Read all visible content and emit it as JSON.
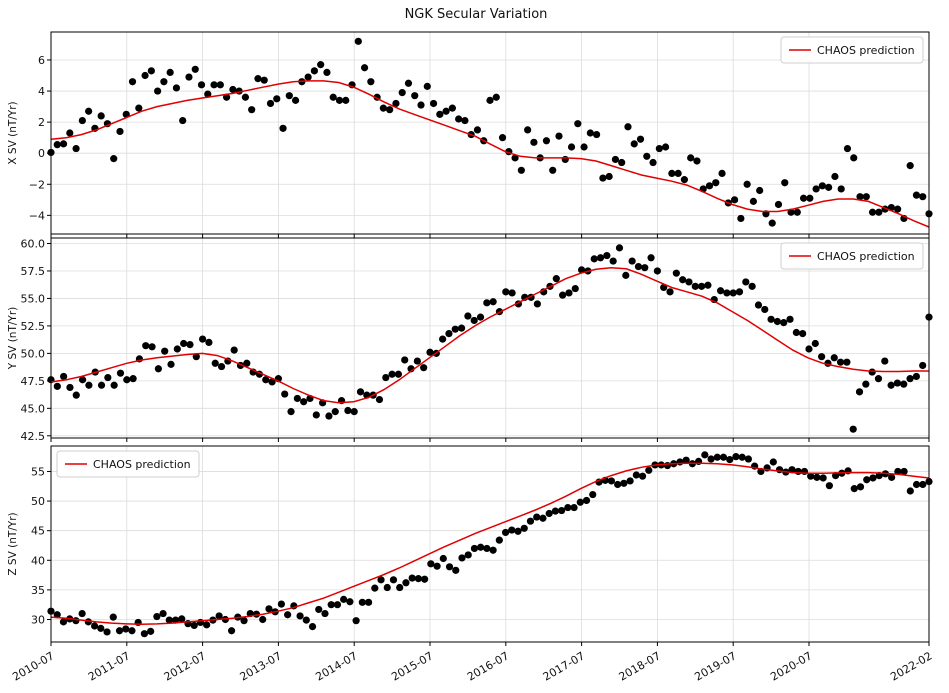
{
  "chart_data": {
    "title": "NGK Secular Variation",
    "type": "scatter",
    "x_tick_labels": [
      "2010-07",
      "2011-07",
      "2012-07",
      "2013-07",
      "2014-07",
      "2015-07",
      "2016-07",
      "2017-07",
      "2018-07",
      "2019-07",
      "2020-07",
      "2022-02"
    ],
    "x_tick_positions": [
      2010.5,
      2011.5,
      2012.5,
      2013.5,
      2014.5,
      2015.5,
      2016.5,
      2017.5,
      2018.5,
      2019.5,
      2020.5,
      2022.083
    ],
    "xlim": [
      2010.5,
      2022.083
    ],
    "colors": {
      "observed": "#000000",
      "model": "#e00000"
    },
    "panels": [
      {
        "ylabel": "X SV (nT/Yr)",
        "ylim": [
          -5.2,
          7.8
        ],
        "yticks": [
          -4,
          -2,
          0,
          2,
          4,
          6
        ],
        "ytick_labels": [
          "−4",
          "−2",
          "0",
          "2",
          "4",
          "6"
        ],
        "legend_position": "top-right",
        "model_label": "CHAOS prediction",
        "observed": [
          0.05,
          0.55,
          0.6,
          1.3,
          0.3,
          2.1,
          2.7,
          1.6,
          2.4,
          1.9,
          -0.35,
          1.4,
          2.5,
          4.6,
          2.9,
          5.0,
          5.3,
          4.0,
          4.6,
          5.2,
          4.2,
          2.1,
          4.9,
          5.4,
          4.4,
          3.8,
          4.4,
          4.4,
          3.6,
          4.1,
          4.0,
          3.6,
          2.8,
          4.8,
          4.7,
          3.2,
          3.5,
          1.6,
          3.7,
          3.4,
          4.6,
          4.9,
          5.3,
          5.7,
          5.2,
          3.6,
          3.4,
          3.4,
          4.4,
          7.2,
          5.5,
          4.6,
          3.6,
          2.9,
          2.8,
          3.2,
          3.9,
          4.5,
          3.7,
          3.1,
          4.3,
          3.2,
          2.5,
          2.7,
          2.9,
          2.2,
          2.1,
          1.2,
          1.5,
          0.8,
          3.4,
          3.6,
          1.0,
          0.1,
          -0.3,
          -1.1,
          1.5,
          0.7,
          -0.3,
          0.8,
          -1.1,
          1.1,
          -0.4,
          0.4,
          1.9,
          0.4,
          1.3,
          1.2,
          -1.6,
          -1.5,
          -0.4,
          -0.6,
          1.7,
          0.6,
          0.9,
          -0.2,
          -0.6,
          0.3,
          0.4,
          -1.3,
          -1.3,
          -1.7,
          -0.3,
          -0.5,
          -2.3,
          -2.1,
          -1.9,
          -1.3,
          -3.2,
          -3.0,
          -4.2,
          -2.0,
          -3.1,
          -2.4,
          -3.9,
          -4.5,
          -3.3,
          -1.9,
          -3.8,
          -3.8,
          -2.9,
          -2.9,
          -2.3,
          -2.1,
          -2.2,
          -1.5,
          -2.3,
          0.3,
          -0.3,
          -2.8,
          -2.8,
          -3.8,
          -3.8,
          -3.6,
          -3.5,
          -3.6,
          -4.2,
          -0.8,
          -2.7,
          -2.8,
          -3.9
        ],
        "model": [
          0.9,
          1.0,
          1.2,
          1.5,
          1.9,
          2.3,
          2.7,
          3.0,
          3.2,
          3.4,
          3.55,
          3.7,
          3.85,
          4.05,
          4.25,
          4.45,
          4.6,
          4.65,
          4.65,
          4.55,
          4.25,
          3.8,
          3.3,
          2.85,
          2.5,
          2.15,
          1.8,
          1.45,
          1.1,
          0.6,
          0.1,
          -0.2,
          -0.3,
          -0.3,
          -0.3,
          -0.35,
          -0.5,
          -0.8,
          -1.1,
          -1.4,
          -1.6,
          -1.8,
          -2.05,
          -2.45,
          -2.9,
          -3.3,
          -3.6,
          -3.75,
          -3.75,
          -3.6,
          -3.35,
          -3.1,
          -2.95,
          -2.95,
          -3.1,
          -3.5,
          -3.9,
          -4.35,
          -4.75
        ]
      },
      {
        "ylabel": "Y SV (nT/Yr)",
        "ylim": [
          42.3,
          60.5
        ],
        "yticks": [
          42.5,
          45.0,
          47.5,
          50.0,
          52.5,
          55.0,
          57.5,
          60.0
        ],
        "ytick_labels": [
          "42.5",
          "45.0",
          "47.5",
          "50.0",
          "52.5",
          "55.0",
          "57.5",
          "60.0"
        ],
        "legend_position": "top-right",
        "model_label": "CHAOS prediction",
        "observed": [
          47.6,
          47.0,
          47.9,
          46.9,
          46.2,
          47.6,
          47.1,
          48.3,
          47.1,
          47.8,
          47.1,
          48.2,
          47.6,
          47.7,
          49.5,
          50.7,
          50.6,
          48.6,
          50.2,
          49.0,
          50.4,
          50.9,
          50.8,
          49.7,
          51.3,
          51.0,
          49.1,
          48.8,
          49.3,
          50.3,
          48.9,
          49.1,
          48.3,
          48.1,
          47.6,
          47.4,
          47.7,
          46.3,
          44.7,
          45.9,
          45.6,
          45.9,
          44.4,
          45.5,
          44.3,
          44.7,
          45.7,
          44.8,
          44.7,
          46.5,
          46.2,
          46.2,
          45.8,
          47.8,
          48.1,
          48.1,
          49.4,
          48.6,
          49.3,
          48.7,
          50.1,
          50.0,
          51.3,
          51.8,
          52.2,
          52.3,
          53.4,
          53.0,
          53.3,
          54.6,
          54.7,
          53.8,
          55.6,
          55.5,
          54.5,
          55.1,
          55.1,
          54.5,
          55.6,
          56.1,
          56.8,
          55.3,
          55.5,
          55.9,
          57.6,
          57.5,
          58.6,
          58.7,
          58.9,
          58.4,
          59.6,
          57.1,
          58.4,
          57.9,
          57.8,
          58.7,
          57.5,
          56.0,
          55.6,
          57.3,
          56.7,
          56.5,
          56.1,
          56.1,
          56.2,
          54.9,
          55.7,
          55.5,
          55.5,
          55.6,
          56.5,
          56.1,
          54.4,
          54.0,
          53.1,
          52.9,
          52.8,
          53.1,
          51.9,
          51.8,
          50.4,
          50.9,
          49.7,
          49.1,
          49.6,
          49.2,
          49.2,
          43.1,
          46.5,
          47.2,
          48.3,
          47.7,
          49.3,
          47.1,
          47.3,
          47.2,
          47.7,
          47.9,
          48.9,
          53.3
        ],
        "model": [
          47.4,
          47.6,
          47.9,
          48.3,
          48.7,
          49.1,
          49.4,
          49.6,
          49.75,
          49.9,
          50.0,
          49.8,
          49.3,
          48.7,
          48.1,
          47.5,
          46.8,
          46.2,
          45.7,
          45.5,
          45.6,
          46.0,
          46.7,
          47.6,
          48.6,
          49.6,
          50.6,
          51.6,
          52.5,
          53.3,
          54.0,
          54.7,
          55.4,
          56.1,
          56.8,
          57.3,
          57.65,
          57.8,
          57.7,
          57.2,
          56.6,
          56.0,
          55.6,
          55.2,
          54.6,
          53.8,
          53.0,
          52.1,
          51.2,
          50.3,
          49.6,
          49.1,
          48.8,
          48.55,
          48.4,
          48.35,
          48.35,
          48.4,
          48.4
        ]
      },
      {
        "ylabel": "Z SV (nT/Yr)",
        "ylim": [
          26.2,
          59.3
        ],
        "yticks": [
          30,
          35,
          40,
          45,
          50,
          55
        ],
        "ytick_labels": [
          "30",
          "35",
          "40",
          "45",
          "50",
          "55"
        ],
        "legend_position": "top-left",
        "model_label": "CHAOS prediction",
        "observed": [
          31.4,
          30.8,
          29.6,
          30.1,
          29.8,
          31.0,
          29.6,
          28.9,
          28.5,
          27.9,
          30.4,
          28.1,
          28.4,
          28.1,
          29.5,
          27.6,
          28.0,
          30.5,
          31.0,
          29.9,
          29.9,
          30.1,
          29.3,
          29.0,
          29.5,
          29.1,
          29.9,
          30.6,
          30.0,
          28.1,
          30.4,
          29.8,
          31.0,
          30.9,
          30.0,
          31.8,
          31.3,
          32.6,
          30.8,
          32.3,
          30.6,
          29.9,
          28.8,
          31.7,
          31.0,
          32.5,
          32.5,
          33.4,
          33.0,
          29.8,
          32.9,
          32.9,
          35.3,
          36.7,
          35.4,
          36.7,
          35.4,
          36.2,
          37.0,
          36.9,
          36.8,
          39.4,
          39.0,
          40.3,
          38.9,
          38.3,
          40.4,
          40.9,
          42.0,
          42.2,
          42.0,
          41.7,
          43.4,
          44.7,
          45.1,
          44.9,
          45.4,
          46.6,
          47.3,
          47.1,
          47.9,
          48.3,
          48.4,
          48.9,
          48.9,
          49.8,
          50.1,
          51.1,
          53.2,
          53.5,
          53.4,
          52.8,
          53.0,
          53.4,
          54.4,
          54.2,
          55.2,
          56.1,
          56.1,
          56.0,
          56.3,
          56.6,
          56.9,
          56.3,
          56.7,
          57.8,
          57.1,
          57.4,
          57.4,
          57.0,
          57.5,
          57.4,
          57.1,
          55.9,
          55.0,
          55.6,
          56.6,
          55.3,
          54.9,
          55.3,
          55.0,
          55.0,
          54.2,
          54.0,
          53.9,
          52.6,
          54.3,
          54.7,
          55.1,
          52.1,
          52.4,
          53.6,
          53.9,
          54.3,
          54.6,
          54.0,
          55.0,
          55.0,
          51.7,
          52.8,
          52.8,
          53.3
        ],
        "model": [
          30.4,
          30.2,
          29.9,
          29.6,
          29.4,
          29.25,
          29.2,
          29.25,
          29.4,
          29.6,
          29.8,
          30.0,
          30.2,
          30.5,
          30.9,
          31.4,
          32.0,
          32.8,
          33.6,
          34.6,
          35.6,
          36.6,
          37.6,
          38.7,
          39.9,
          41.1,
          42.3,
          43.4,
          44.5,
          45.5,
          46.5,
          47.5,
          48.5,
          49.6,
          50.8,
          52.1,
          53.3,
          54.3,
          55.1,
          55.7,
          56.1,
          56.3,
          56.4,
          56.4,
          56.3,
          56.1,
          55.8,
          55.4,
          55.1,
          54.8,
          54.7,
          54.7,
          54.75,
          54.8,
          54.8,
          54.7,
          54.5,
          54.2,
          53.9
        ]
      }
    ]
  }
}
